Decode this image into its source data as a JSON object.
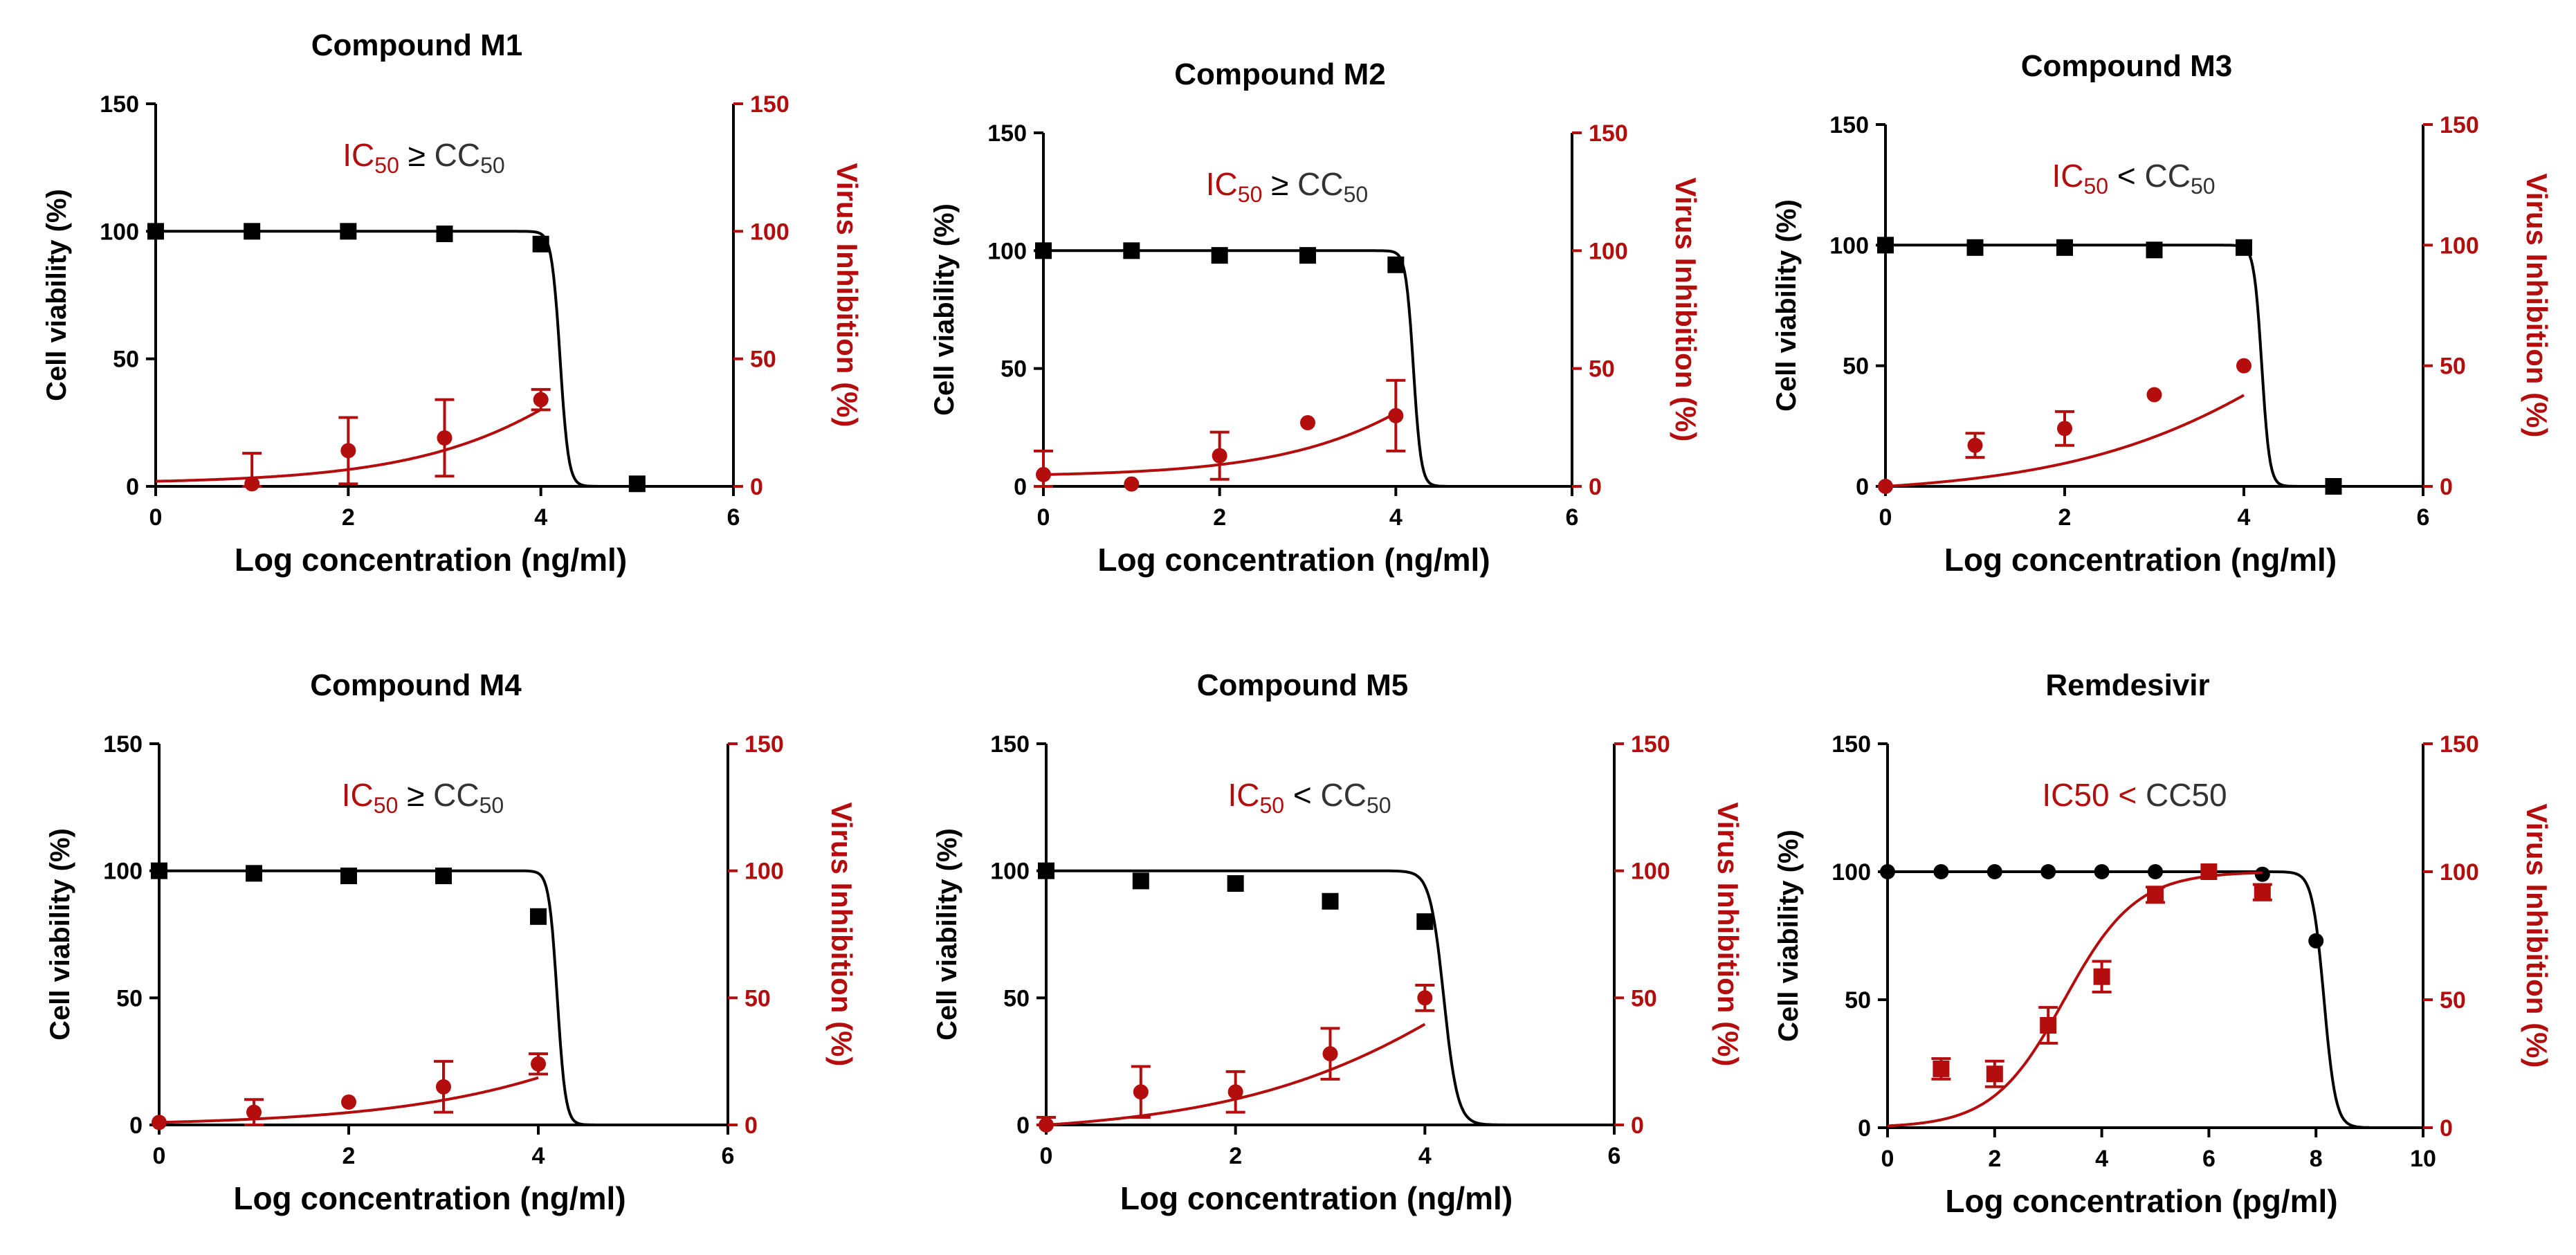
{
  "colors": {
    "viability": "#000000",
    "inhibition": "#b30d0d",
    "background": "#ffffff"
  },
  "chart_data": [
    {
      "type": "scatter",
      "title": "Compound M1",
      "annotation": {
        "left": "IC",
        "left_sub": "50",
        "op": " ≥ ",
        "right": "CC",
        "right_sub": "50"
      },
      "xlabel": "Log concentration  (ng/ml)",
      "ylabel": "Cell viability (%)",
      "y2label": "Virus Inhibition (%)",
      "xlim": [
        0,
        6
      ],
      "ylim": [
        0,
        150
      ],
      "y2lim": [
        0,
        150
      ],
      "xticks": [
        0,
        2,
        4,
        6
      ],
      "yticks": [
        0,
        50,
        100,
        150
      ],
      "series": [
        {
          "name": "Cell viability",
          "axis": "left",
          "marker": "square",
          "x": [
            0,
            1,
            2,
            3,
            4,
            5
          ],
          "y": [
            100,
            100,
            100,
            99,
            95,
            1
          ],
          "fit": {
            "top": 100,
            "bottom": 0,
            "ec50": 4.2,
            "hill": 10,
            "from": 0,
            "to": 5
          }
        },
        {
          "name": "Virus inhibition",
          "axis": "right",
          "marker": "circle",
          "x": [
            1,
            2,
            3,
            4
          ],
          "y": [
            1,
            14,
            19,
            34
          ],
          "err": [
            12,
            13,
            15,
            4
          ],
          "x0": 0,
          "fit": {
            "top": 150,
            "bottom": 0,
            "ec50": 5.55,
            "hill": 0.4,
            "from": 0,
            "to": 4
          }
        }
      ]
    },
    {
      "type": "scatter",
      "title": "Compound M2",
      "annotation": {
        "left": "IC",
        "left_sub": "50",
        "op": " ≥ ",
        "right": "CC",
        "right_sub": "50"
      },
      "xlabel": "Log concentration  (ng/ml)",
      "ylabel": "Cell viability (%)",
      "y2label": "Virus Inhibition (%)",
      "xlim": [
        0,
        6
      ],
      "ylim": [
        0,
        150
      ],
      "y2lim": [
        0,
        150
      ],
      "xticks": [
        0,
        2,
        4,
        6
      ],
      "yticks": [
        0,
        50,
        100,
        150
      ],
      "series": [
        {
          "name": "Cell viability",
          "axis": "left",
          "marker": "square",
          "x": [
            0,
            1,
            2,
            3,
            4
          ],
          "y": [
            100,
            100,
            98,
            98,
            94
          ],
          "fit": {
            "top": 100,
            "bottom": 0,
            "ec50": 4.2,
            "hill": 10,
            "from": 0,
            "to": 5
          }
        },
        {
          "name": "Virus inhibition",
          "axis": "right",
          "marker": "circle",
          "x": [
            0,
            1,
            2,
            3,
            4
          ],
          "y": [
            5,
            1,
            13,
            27,
            30
          ],
          "err": [
            10,
            0,
            10,
            0,
            15
          ],
          "fit": {
            "top": 150,
            "bottom": 0,
            "ec50": 5.65,
            "hill": 0.4,
            "from": 0,
            "to": 4
          }
        }
      ]
    },
    {
      "type": "scatter",
      "title": "Compound M3",
      "annotation": {
        "left": "IC",
        "left_sub": "50",
        "op": " < ",
        "right": "CC",
        "right_sub": "50"
      },
      "xlabel": "Log concentration  (ng/ml)",
      "ylabel": "Cell viability (%)",
      "y2label": "Virus Inhibition (%)",
      "xlim": [
        0,
        6
      ],
      "ylim": [
        0,
        150
      ],
      "y2lim": [
        0,
        150
      ],
      "xticks": [
        0,
        2,
        4,
        6
      ],
      "yticks": [
        0,
        50,
        100,
        150
      ],
      "series": [
        {
          "name": "Cell viability",
          "axis": "left",
          "marker": "square",
          "x": [
            0,
            1,
            2,
            3,
            4,
            5
          ],
          "y": [
            100,
            99,
            99,
            98,
            99,
            0
          ],
          "fit": {
            "top": 100,
            "bottom": 0,
            "ec50": 4.2,
            "hill": 10,
            "from": 0,
            "to": 5
          }
        },
        {
          "name": "Virus inhibition",
          "axis": "right",
          "marker": "circle",
          "x": [
            0,
            1,
            2,
            3,
            4
          ],
          "y": [
            0,
            17,
            24,
            38,
            50
          ],
          "err": [
            0,
            5,
            7,
            0,
            0
          ],
          "fit": {
            "top": 150,
            "bottom": 0,
            "ec50": 5.4,
            "hill": 0.3,
            "from": 0,
            "to": 4
          }
        }
      ]
    },
    {
      "type": "scatter",
      "title": "Compound M4",
      "annotation": {
        "left": "IC",
        "left_sub": "50",
        "op": " ≥ ",
        "right": "CC",
        "right_sub": "50"
      },
      "xlabel": "Log concentration  (ng/ml)",
      "ylabel": "Cell viability (%)",
      "y2label": "Virus Inhibition (%)",
      "xlim": [
        0,
        6
      ],
      "ylim": [
        0,
        150
      ],
      "y2lim": [
        0,
        150
      ],
      "xticks": [
        0,
        2,
        4,
        6
      ],
      "yticks": [
        0,
        50,
        100,
        150
      ],
      "series": [
        {
          "name": "Cell viability",
          "axis": "left",
          "marker": "square",
          "x": [
            0,
            1,
            2,
            3,
            4
          ],
          "y": [
            100,
            99,
            98,
            98,
            82
          ],
          "fit": {
            "top": 100,
            "bottom": 0,
            "ec50": 4.2,
            "hill": 10,
            "from": 0,
            "to": 5
          }
        },
        {
          "name": "Virus inhibition",
          "axis": "right",
          "marker": "circle",
          "x": [
            0,
            1,
            2,
            3,
            4
          ],
          "y": [
            1,
            5,
            9,
            15,
            24
          ],
          "err": [
            0,
            5,
            0,
            10,
            4
          ],
          "fit": {
            "top": 150,
            "bottom": 0,
            "ec50": 6.8,
            "hill": 0.3,
            "from": 0,
            "to": 4
          }
        }
      ]
    },
    {
      "type": "scatter",
      "title": "Compound M5",
      "annotation": {
        "left": "IC",
        "left_sub": "50",
        "op": " < ",
        "right": "CC",
        "right_sub": "50"
      },
      "xlabel": "Log concentration  (ng/ml)",
      "ylabel": "Cell viability (%)",
      "y2label": "Virus Inhibition (%)",
      "xlim": [
        0,
        6
      ],
      "ylim": [
        0,
        150
      ],
      "y2lim": [
        0,
        150
      ],
      "xticks": [
        0,
        2,
        4,
        6
      ],
      "yticks": [
        0,
        50,
        100,
        150
      ],
      "series": [
        {
          "name": "Cell viability",
          "axis": "left",
          "marker": "square",
          "x": [
            0,
            1,
            2,
            3,
            4
          ],
          "y": [
            100,
            96,
            95,
            88,
            80
          ],
          "fit": {
            "top": 100,
            "bottom": 0,
            "ec50": 4.2,
            "hill": 6,
            "from": 0,
            "to": 5
          }
        },
        {
          "name": "Virus inhibition",
          "axis": "right",
          "marker": "circle",
          "x": [
            0,
            1,
            2,
            3,
            4
          ],
          "y": [
            0,
            13,
            13,
            28,
            50
          ],
          "err": [
            3,
            10,
            8,
            10,
            5
          ],
          "fit": {
            "top": 150,
            "bottom": 0,
            "ec50": 5.3,
            "hill": 0.3,
            "from": 0,
            "to": 4
          }
        }
      ]
    },
    {
      "type": "scatter",
      "title": "Remdesivir",
      "annotation": {
        "left": "IC50",
        "left_sub": "",
        "op": " < ",
        "right": "CC50",
        "right_sub": ""
      },
      "xlabel": "Log concentration  (pg/ml)",
      "ylabel": "Cell viability (%)",
      "y2label": "Virus Inhibition (%)",
      "xlim": [
        0,
        10
      ],
      "ylim": [
        0,
        150
      ],
      "y2lim": [
        0,
        150
      ],
      "xticks": [
        0,
        2,
        4,
        6,
        8,
        10
      ],
      "yticks": [
        0,
        50,
        100,
        150
      ],
      "series": [
        {
          "name": "Cell viability",
          "axis": "left",
          "marker": "circle",
          "x": [
            0,
            1,
            2,
            3,
            4,
            5,
            6,
            7,
            8
          ],
          "y": [
            100,
            100,
            100,
            100,
            100,
            100,
            100,
            99,
            73
          ],
          "fit": {
            "top": 100,
            "bottom": 0,
            "ec50": 8.15,
            "hill": 4,
            "from": 0,
            "to": 9
          }
        },
        {
          "name": "Virus inhibition",
          "axis": "right",
          "marker": "square",
          "x": [
            1,
            2,
            3,
            4,
            5,
            6,
            7
          ],
          "y": [
            23,
            21,
            40,
            59,
            91,
            100,
            92
          ],
          "err": [
            4,
            5,
            7,
            6,
            3,
            0,
            3
          ],
          "fit": {
            "top": 100,
            "bottom": 0,
            "ec50": 3.3,
            "hill": 0.65,
            "from": 0,
            "to": 7
          }
        }
      ]
    }
  ]
}
